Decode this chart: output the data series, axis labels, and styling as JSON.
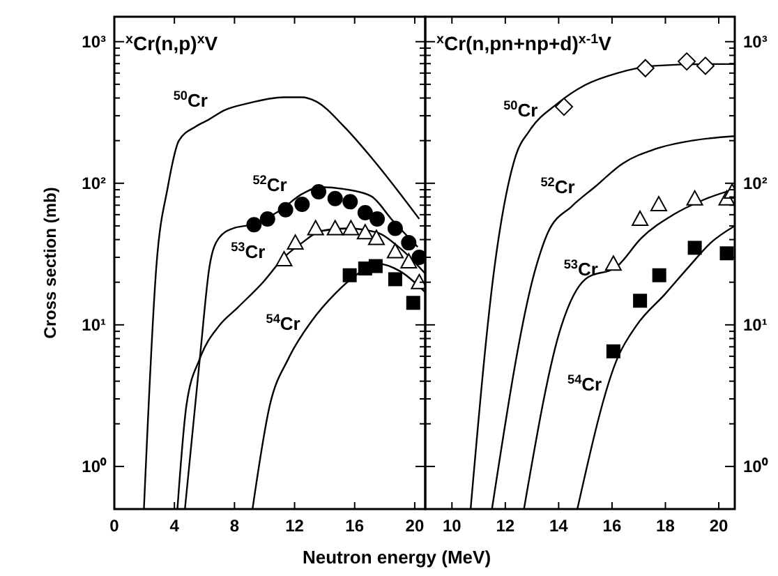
{
  "chart_data": [
    {
      "type": "line",
      "title": "$^{x}$Cr(n,p)$^{x}$V",
      "xlabel": "Neutron energy (MeV)",
      "ylabel": "Cross section (mb)",
      "log": "y",
      "xlim": [
        0,
        20.7
      ],
      "xticks": [
        0,
        4,
        8,
        12,
        16,
        20
      ],
      "ylim": [
        0.5,
        1500
      ],
      "yticks": [
        {
          "value": 1,
          "label": "10⁰"
        },
        {
          "value": 2,
          "label": null
        },
        {
          "value": 3,
          "label": null
        },
        {
          "value": 4,
          "label": null
        },
        {
          "value": 5,
          "label": null
        },
        {
          "value": 6,
          "label": null
        },
        {
          "value": 7,
          "label": null
        },
        {
          "value": 8,
          "label": null
        },
        {
          "value": 9,
          "label": null
        },
        {
          "value": 10,
          "label": "10¹"
        },
        {
          "value": 20,
          "label": null
        },
        {
          "value": 30,
          "label": null
        },
        {
          "value": 40,
          "label": null
        },
        {
          "value": 50,
          "label": null
        },
        {
          "value": 60,
          "label": null
        },
        {
          "value": 70,
          "label": null
        },
        {
          "value": 80,
          "label": null
        },
        {
          "value": 90,
          "label": null
        },
        {
          "value": 100,
          "label": "10²"
        },
        {
          "value": 200,
          "label": null
        },
        {
          "value": 300,
          "label": null
        },
        {
          "value": 400,
          "label": null
        },
        {
          "value": 500,
          "label": null
        },
        {
          "value": 600,
          "label": null
        },
        {
          "value": 700,
          "label": null
        },
        {
          "value": 800,
          "label": null
        },
        {
          "value": 900,
          "label": null
        },
        {
          "value": 1000,
          "label": "10³"
        }
      ],
      "series": [
        {
          "type": "line",
          "name": "$^{50}$Cr",
          "color": "#000000",
          "x": [
            1.97,
            2.8,
            3.56,
            4.3,
            5.4,
            6.3,
            7.3,
            8.85,
            11.3,
            12.5,
            13.4,
            15.3,
            17.2,
            20.3
          ],
          "values": [
            0.5,
            26,
            94,
            200,
            251,
            282,
            327,
            366,
            405,
            405,
            380,
            251,
            148,
            56
          ]
        },
        {
          "type": "line",
          "name": "$^{52}$Cr",
          "color": "#000000",
          "x": [
            4.7,
            5.72,
            6.34,
            6.96,
            7.9,
            9.1,
            11.0,
            12.5,
            13.75,
            15.3,
            17.1,
            18.5,
            20.2
          ],
          "values": [
            0.5,
            6.2,
            26,
            41,
            48,
            51,
            64,
            84,
            94,
            91,
            81,
            55,
            35.5
          ]
        },
        {
          "type": "line",
          "name": "$^{53}$Cr",
          "color": "#000000",
          "x": [
            4.2,
            4.8,
            5.7,
            6.96,
            8.2,
            9.9,
            11.3,
            12.5,
            13.75,
            15.6,
            17.45,
            19,
            20.7
          ],
          "values": [
            0.5,
            2.7,
            5.8,
            9.8,
            13.2,
            20,
            30,
            38,
            46,
            48,
            45,
            35,
            23
          ]
        },
        {
          "type": "line",
          "name": "$^{54}$Cr",
          "color": "#000000",
          "x": [
            9.2,
            10.35,
            11.6,
            13.1,
            14.7,
            16.5,
            17.6,
            19,
            20.7
          ],
          "values": [
            0.5,
            2.7,
            5.8,
            10.5,
            16.6,
            24,
            27,
            24,
            17
          ]
        },
        {
          "type": "scatter",
          "marker": "circle",
          "color": "#000000",
          "x": [
            9.3,
            10.2,
            11.4,
            12.5,
            13.6,
            14.7,
            15.7,
            16.7,
            17.5,
            18.7,
            19.6,
            20.3
          ],
          "values": [
            51,
            56,
            65,
            71,
            87,
            78,
            74,
            62,
            56,
            48,
            38,
            30
          ]
        },
        {
          "type": "scatter",
          "marker": "triangle",
          "color": "#ffffff",
          "x": [
            11.3,
            12.05,
            13.4,
            14.7,
            15.75,
            16.7,
            17.45,
            18.7,
            19.6,
            20.3
          ],
          "values": [
            29,
            38,
            48,
            48,
            48,
            45,
            41,
            33,
            28,
            20
          ]
        },
        {
          "type": "scatter",
          "marker": "square",
          "color": "#000000",
          "x": [
            15.67,
            16.7,
            17.4,
            18.7,
            19.9
          ],
          "values": [
            22.4,
            25,
            26,
            21,
            14.3
          ]
        }
      ]
    },
    {
      "type": "line",
      "title": "$^{x}$Cr(n,pn+np+d)$^{x-1}$V",
      "log": "y2",
      "xlim": [
        9,
        20.6
      ],
      "xticks": [
        10,
        12,
        14,
        16,
        18,
        20
      ],
      "y2lim": [
        0.5,
        1500
      ],
      "y2ticks": [
        {
          "value": 1,
          "label": "10⁰"
        },
        {
          "value": 2,
          "label": null
        },
        {
          "value": 3,
          "label": null
        },
        {
          "value": 4,
          "label": null
        },
        {
          "value": 5,
          "label": null
        },
        {
          "value": 6,
          "label": null
        },
        {
          "value": 7,
          "label": null
        },
        {
          "value": 8,
          "label": null
        },
        {
          "value": 9,
          "label": null
        },
        {
          "value": 10,
          "label": "10¹"
        },
        {
          "value": 20,
          "label": null
        },
        {
          "value": 30,
          "label": null
        },
        {
          "value": 40,
          "label": null
        },
        {
          "value": 50,
          "label": null
        },
        {
          "value": 60,
          "label": null
        },
        {
          "value": 70,
          "label": null
        },
        {
          "value": 80,
          "label": null
        },
        {
          "value": 90,
          "label": null
        },
        {
          "value": 100,
          "label": "10²"
        },
        {
          "value": 200,
          "label": null
        },
        {
          "value": 300,
          "label": null
        },
        {
          "value": 400,
          "label": null
        },
        {
          "value": 500,
          "label": null
        },
        {
          "value": 600,
          "label": null
        },
        {
          "value": 700,
          "label": null
        },
        {
          "value": 800,
          "label": null
        },
        {
          "value": 900,
          "label": null
        },
        {
          "value": 1000,
          "label": "10³"
        }
      ],
      "series": [
        {
          "type": "line",
          "name": "$^{50}$Cr",
          "axis": "y2",
          "color": "#000000",
          "x": [
            10.7,
            11.6,
            12.4,
            12.9,
            13.95,
            15.0,
            16.2,
            17.6,
            19.4,
            20.6
          ],
          "values": [
            0.5,
            26,
            158,
            234,
            365,
            495,
            600,
            675,
            695,
            695
          ]
        },
        {
          "type": "line",
          "name": "$^{52}$Cr",
          "axis": "y2",
          "color": "#000000",
          "x": [
            11.5,
            13.16,
            13.6,
            14.5,
            15.35,
            16.4,
            17.6,
            19.0,
            20.6
          ],
          "values": [
            0.5,
            26,
            45,
            69,
            94,
            138,
            174,
            200,
            215
          ]
        },
        {
          "type": "line",
          "name": "$^{53}$Cr",
          "axis": "y2",
          "color": "#000000",
          "x": [
            12.7,
            14.1,
            15.0,
            16.2,
            17.1,
            18.3,
            19.4,
            20.6
          ],
          "values": [
            0.5,
            9.8,
            21,
            26,
            41,
            60,
            76,
            91
          ]
        },
        {
          "type": "line",
          "name": "$^{54}$Cr",
          "axis": "y2",
          "color": "#000000",
          "x": [
            14.7,
            16.2,
            16.9,
            18.0,
            18.9,
            19.7,
            20.6
          ],
          "values": [
            0.5,
            5.8,
            9.8,
            16.6,
            26,
            38,
            50
          ]
        },
        {
          "type": "scatter",
          "axis": "y2",
          "marker": "diamond",
          "color": "#ffffff",
          "x": [
            14.2,
            17.25,
            18.8,
            19.5
          ],
          "values": [
            347,
            650,
            725,
            675
          ]
        },
        {
          "type": "scatter",
          "axis": "y2",
          "marker": "triangle",
          "color": "#ffffff",
          "x": [
            16.05,
            17.05,
            17.75,
            19.1,
            20.3,
            20.5
          ],
          "values": [
            27,
            56,
            71,
            78,
            78,
            87
          ]
        },
        {
          "type": "scatter",
          "axis": "y2",
          "marker": "square",
          "color": "#000000",
          "x": [
            16.05,
            17.05,
            17.77,
            19.1,
            20.3
          ],
          "values": [
            6.5,
            14.8,
            22.4,
            35,
            32
          ]
        }
      ]
    }
  ]
}
